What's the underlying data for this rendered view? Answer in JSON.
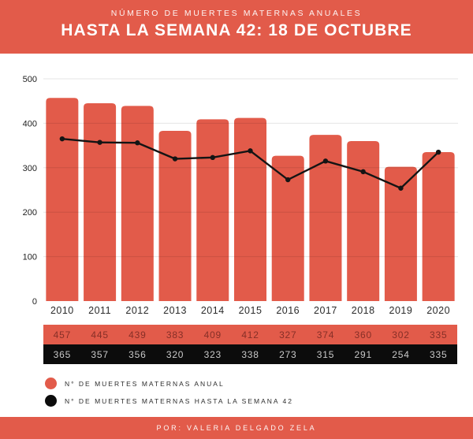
{
  "header": {
    "subtitle": "NÚMERO DE MUERTES MATERNAS ANUALES",
    "title": "HASTA LA SEMANA 42: 18 DE OCTUBRE"
  },
  "chart_data": {
    "type": "bar",
    "title": "NÚMERO DE MUERTES MATERNAS ANUALES",
    "subtitle": "HASTA LA SEMANA 42: 18 DE OCTUBRE",
    "categories": [
      "2010",
      "2011",
      "2012",
      "2013",
      "2014",
      "2015",
      "2016",
      "2017",
      "2018",
      "2019",
      "2020"
    ],
    "series": [
      {
        "name": "N° DE MUERTES MATERNAS ANUAL",
        "type": "bar",
        "color": "#E25B4A",
        "values": [
          457,
          445,
          439,
          383,
          409,
          412,
          327,
          374,
          360,
          302,
          335
        ]
      },
      {
        "name": "N° DE MUERTES MATERNAS HASTA LA SEMANA 42",
        "type": "line",
        "color": "#141414",
        "values": [
          365,
          357,
          356,
          320,
          323,
          338,
          273,
          315,
          291,
          254,
          335
        ]
      }
    ],
    "xlabel": "",
    "ylabel": "",
    "ylim": [
      0,
      500
    ],
    "yticks": [
      0,
      100,
      200,
      300,
      400,
      500
    ],
    "grid": true,
    "legend_position": "bottom"
  },
  "value_rows": [
    {
      "id": "annual",
      "bg": "#E25B4A",
      "text_color": "#86permalink2F27",
      "values": [
        "457",
        "445",
        "439",
        "383",
        "409",
        "412",
        "327",
        "374",
        "360",
        "302",
        "335"
      ]
    },
    {
      "id": "week42",
      "bg": "#0C0C0C",
      "text_color": "#C9C9C9",
      "values": [
        "365",
        "357",
        "356",
        "320",
        "323",
        "338",
        "273",
        "315",
        "291",
        "254",
        "335"
      ]
    }
  ],
  "legend": {
    "items": [
      {
        "label": "N° DE MUERTES MATERNAS ANUAL",
        "color": "#E25B4A"
      },
      {
        "label": "N° DE MUERTES MATERNAS HASTA LA SEMANA 42",
        "color": "#0C0C0C"
      }
    ]
  },
  "footer": {
    "credit": "POR: VALERIA DELGADO ZELA"
  },
  "colors": {
    "accent": "#E25B4A",
    "chart_background": "#FFFFFF",
    "gridline": "rgba(0,0,0,0.10)",
    "axis_text": "#1E1E1E",
    "annual_row_text": "#862F27",
    "week42_row_text": "#C9C9C9"
  }
}
